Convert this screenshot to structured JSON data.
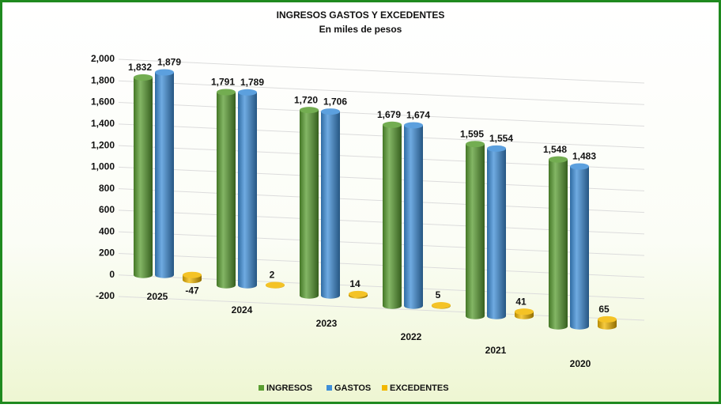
{
  "chart_data": {
    "type": "bar3d",
    "title": "INGRESOS GASTOS Y EXCEDENTES",
    "subtitle": "En miles de pesos",
    "categories": [
      "2025",
      "2024",
      "2023",
      "2022",
      "2021",
      "2020"
    ],
    "series": [
      {
        "name": "INGRESOS",
        "color": "#5a9e32",
        "values": [
          1832,
          1791,
          1720,
          1679,
          1595,
          1548
        ],
        "value_labels": [
          "1,832",
          "1,791",
          "1,720",
          "1,679",
          "1,595",
          "1,548"
        ]
      },
      {
        "name": "GASTOS",
        "color": "#3f8fd8",
        "values": [
          1879,
          1789,
          1706,
          1674,
          1554,
          1483
        ],
        "value_labels": [
          "1,879",
          "1,789",
          "1,706",
          "1,674",
          "1,554",
          "1,483"
        ]
      },
      {
        "name": "EXCEDENTES",
        "color": "#f2b800",
        "values": [
          -47,
          2,
          14,
          5,
          41,
          65
        ]
      }
    ],
    "ylim": [
      -200,
      2000
    ],
    "yticks": [
      -200,
      0,
      200,
      400,
      600,
      800,
      {
        "value": 1000,
        "label": "1,000"
      },
      {
        "value": 1200,
        "label": "1,200"
      },
      {
        "value": 1400,
        "label": "1,400"
      },
      {
        "value": 1600,
        "label": "1,600"
      },
      {
        "value": 1800,
        "label": "1,800"
      },
      {
        "value": 2000,
        "label": "2,000"
      }
    ],
    "grid": true,
    "legend": "bottom"
  }
}
